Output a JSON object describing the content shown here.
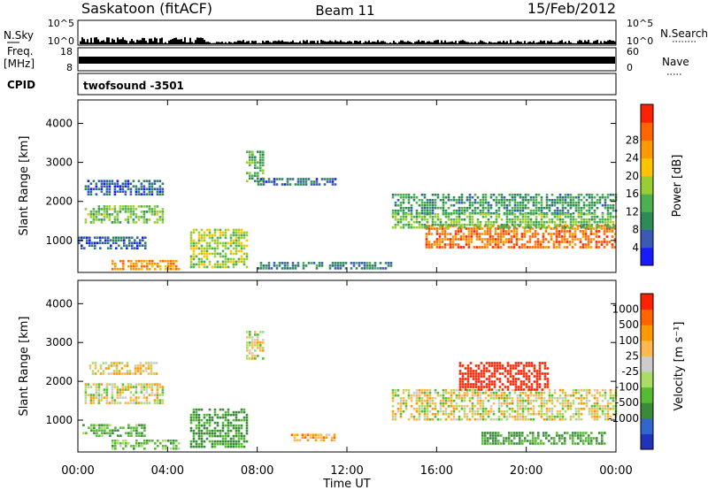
{
  "header": {
    "station": "Saskatoon (fitACF)",
    "beam": "Beam 11",
    "date": "15/Feb/2012"
  },
  "status_panels": {
    "nsky_label": "N.Sky",
    "nsky_ticks": [
      "10^5",
      "10^0"
    ],
    "nsearch_label": "N.Search",
    "nsearch_ticks": [
      "10^5",
      "10^0"
    ],
    "freq_label": "Freq.",
    "freq_unit": "[MHz]",
    "freq_ticks": [
      "18",
      "8"
    ],
    "nave_label": "Nave",
    "nave_ticks": [
      "60",
      "0"
    ],
    "cpid_label": "CPID",
    "cpid_value": "twofsound -3501"
  },
  "chart_data": [
    {
      "type": "heatmap",
      "name": "power",
      "ylabel": "Slant Range [km]",
      "ylim": [
        180,
        4600
      ],
      "yticks": [
        "1000",
        "2000",
        "3000",
        "4000"
      ],
      "xlim": [
        0,
        24
      ],
      "colorbar": {
        "label": "Power [dB]",
        "ticks": [
          "4",
          "8",
          "12",
          "16",
          "20",
          "24",
          "28"
        ],
        "colors": [
          "#1a1aff",
          "#3a5ab4",
          "#2e8b57",
          "#4caf50",
          "#9acd32",
          "#ffc400",
          "#ff9900",
          "#ff6600",
          "#ff2200"
        ]
      },
      "regions": [
        {
          "t0": 0.3,
          "t1": 3.8,
          "r0": 1450,
          "r1": 1900,
          "value": 14
        },
        {
          "t0": 0.3,
          "t1": 3.8,
          "r0": 2200,
          "r1": 2550,
          "value": 6
        },
        {
          "t0": 0.0,
          "t1": 3.0,
          "r0": 800,
          "r1": 1100,
          "value": 6
        },
        {
          "t0": 1.5,
          "t1": 4.5,
          "r0": 250,
          "r1": 500,
          "value": 24
        },
        {
          "t0": 5.0,
          "t1": 7.5,
          "r0": 300,
          "r1": 1300,
          "value": 16
        },
        {
          "t0": 7.5,
          "t1": 8.3,
          "r0": 2500,
          "r1": 3300,
          "value": 12
        },
        {
          "t0": 8.0,
          "t1": 11.5,
          "r0": 2400,
          "r1": 2600,
          "value": 6
        },
        {
          "t0": 8.0,
          "t1": 14.0,
          "r0": 250,
          "r1": 450,
          "value": 8
        },
        {
          "t0": 14.0,
          "t1": 24.0,
          "r0": 1700,
          "r1": 2200,
          "value": 10
        },
        {
          "t0": 15.5,
          "t1": 24.0,
          "r0": 800,
          "r1": 1400,
          "value": 26
        },
        {
          "t0": 14.0,
          "t1": 24.0,
          "r0": 1350,
          "r1": 1700,
          "value": 14
        }
      ]
    },
    {
      "type": "heatmap",
      "name": "velocity",
      "ylabel": "Slant Range [km]",
      "ylim": [
        180,
        4600
      ],
      "yticks": [
        "1000",
        "2000",
        "3000",
        "4000"
      ],
      "xlim": [
        0,
        24
      ],
      "xlabel": "Time UT",
      "xticks": [
        "00:00",
        "04:00",
        "08:00",
        "12:00",
        "16:00",
        "20:00",
        "00:00"
      ],
      "colorbar": {
        "label": "Velocity [m s⁻¹]",
        "ticks": [
          "1000",
          "500",
          "100",
          "25",
          "-25",
          "-100",
          "-500",
          "-1000"
        ],
        "colors": [
          "#2233bb",
          "#3366cc",
          "#3a8a3a",
          "#55bb33",
          "#aadd66",
          "#cccccc",
          "#ffb84d",
          "#ff9900",
          "#ff6600",
          "#ff2200"
        ]
      },
      "regions": [
        {
          "t0": 0.3,
          "t1": 3.8,
          "r0": 1450,
          "r1": 1950,
          "value": 0
        },
        {
          "t0": 0.5,
          "t1": 3.5,
          "r0": 2200,
          "r1": 2500,
          "value": -50
        },
        {
          "t0": 0.2,
          "t1": 3.0,
          "r0": 600,
          "r1": 900,
          "value": 200
        },
        {
          "t0": 1.5,
          "t1": 4.5,
          "r0": 250,
          "r1": 500,
          "value": 150
        },
        {
          "t0": 5.0,
          "t1": 7.5,
          "r0": 300,
          "r1": 1300,
          "value": 300
        },
        {
          "t0": 7.5,
          "t1": 8.3,
          "r0": 2600,
          "r1": 3300,
          "value": 0
        },
        {
          "t0": 9.5,
          "t1": 11.5,
          "r0": 450,
          "r1": 650,
          "value": -150
        },
        {
          "t0": 14.0,
          "t1": 24.0,
          "r0": 1000,
          "r1": 1800,
          "value": 0
        },
        {
          "t0": 17.0,
          "t1": 21.0,
          "r0": 1800,
          "r1": 2500,
          "value": -800
        },
        {
          "t0": 18.0,
          "t1": 23.5,
          "r0": 400,
          "r1": 700,
          "value": 250
        }
      ]
    }
  ]
}
